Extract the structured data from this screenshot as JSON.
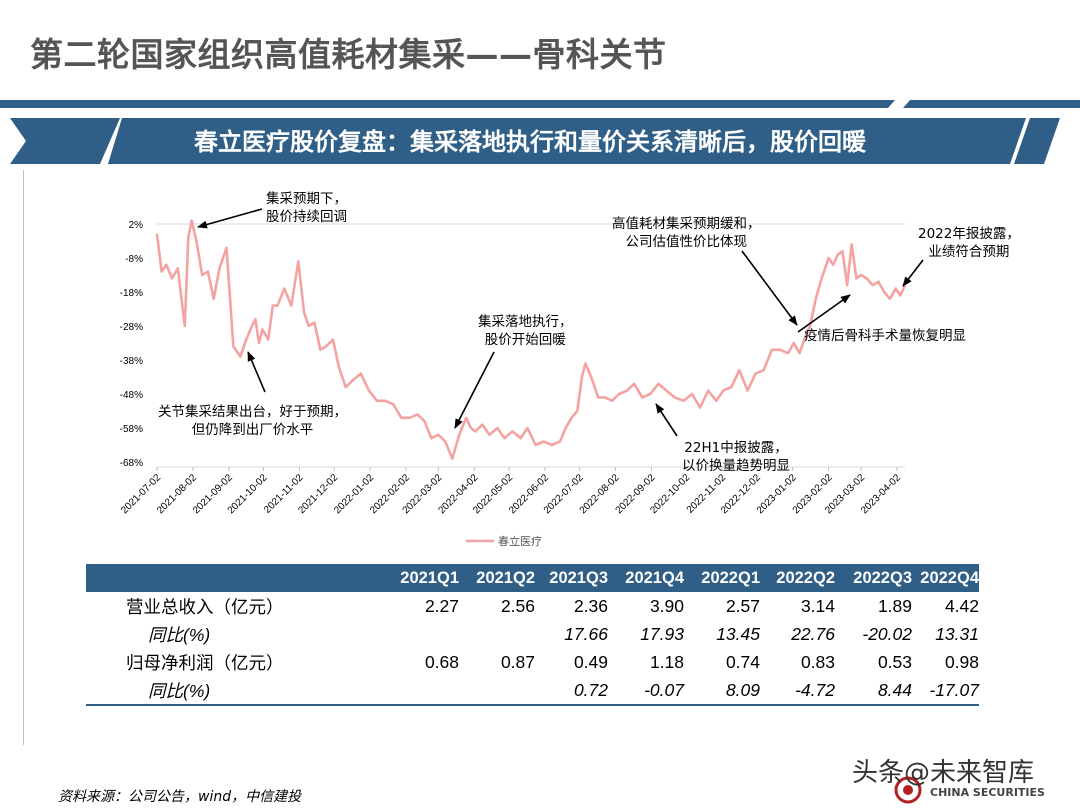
{
  "header": {
    "title": "第二轮国家组织高值耗材集采——骨科关节",
    "subtitle": "春立医疗股价复盘：集采落地执行和量价关系清晰后，股价回暖"
  },
  "colors": {
    "line": "#f4a3a3",
    "accent": "#2f5e86",
    "title": "#555555"
  },
  "chart_data": {
    "type": "line",
    "title": "",
    "xlabel": "",
    "ylabel": "",
    "ylim": [
      -68,
      2
    ],
    "y_ticks": [
      "2%",
      "-8%",
      "-18%",
      "-28%",
      "-38%",
      "-48%",
      "-58%",
      "-68%"
    ],
    "x_ticks": [
      "2021-07-02",
      "2021-08-02",
      "2021-09-02",
      "2021-10-02",
      "2021-11-02",
      "2021-12-02",
      "2022-01-02",
      "2022-02-02",
      "2022-03-02",
      "2022-04-02",
      "2022-05-02",
      "2022-06-02",
      "2022-07-02",
      "2022-08-02",
      "2022-09-02",
      "2022-10-02",
      "2022-11-02",
      "2022-12-02",
      "2023-01-02",
      "2023-02-02",
      "2023-03-02",
      "2023-04-02"
    ],
    "legend": "bottom-center",
    "series": [
      {
        "name": "春立医疗",
        "x": [
          "2021-07-02",
          "2021-07-06",
          "2021-07-10",
          "2021-07-15",
          "2021-07-20",
          "2021-07-26",
          "2021-07-29",
          "2021-08-01",
          "2021-08-05",
          "2021-08-10",
          "2021-08-15",
          "2021-08-20",
          "2021-08-25",
          "2021-08-31",
          "2021-09-06",
          "2021-09-12",
          "2021-09-17",
          "2021-09-22",
          "2021-09-25",
          "2021-09-28",
          "2021-10-01",
          "2021-10-06",
          "2021-10-10",
          "2021-10-14",
          "2021-10-20",
          "2021-10-26",
          "2021-11-01",
          "2021-11-06",
          "2021-11-10",
          "2021-11-15",
          "2021-11-20",
          "2021-11-25",
          "2021-12-01",
          "2021-12-06",
          "2021-12-12",
          "2021-12-18",
          "2021-12-25",
          "2022-01-01",
          "2022-01-08",
          "2022-01-15",
          "2022-01-22",
          "2022-01-29",
          "2022-02-05",
          "2022-02-12",
          "2022-02-18",
          "2022-02-24",
          "2022-03-02",
          "2022-03-08",
          "2022-03-14",
          "2022-03-20",
          "2022-03-26",
          "2022-03-30",
          "2022-04-03",
          "2022-04-09",
          "2022-04-15",
          "2022-04-22",
          "2022-04-28",
          "2022-05-05",
          "2022-05-12",
          "2022-05-18",
          "2022-05-25",
          "2022-06-01",
          "2022-06-08",
          "2022-06-15",
          "2022-06-20",
          "2022-06-25",
          "2022-06-30",
          "2022-07-04",
          "2022-07-07",
          "2022-07-12",
          "2022-07-18",
          "2022-07-24",
          "2022-07-30",
          "2022-08-05",
          "2022-08-12",
          "2022-08-18",
          "2022-08-25",
          "2022-09-01",
          "2022-09-08",
          "2022-09-15",
          "2022-09-22",
          "2022-09-30",
          "2022-10-07",
          "2022-10-14",
          "2022-10-21",
          "2022-10-28",
          "2022-11-03",
          "2022-11-10",
          "2022-11-17",
          "2022-11-24",
          "2022-12-01",
          "2022-12-08",
          "2022-12-15",
          "2022-12-22",
          "2022-12-29",
          "2023-01-03",
          "2023-01-08",
          "2023-01-12",
          "2023-01-17",
          "2023-01-22",
          "2023-01-27",
          "2023-02-02",
          "2023-02-06",
          "2023-02-10",
          "2023-02-14",
          "2023-02-18",
          "2023-02-22",
          "2023-02-26",
          "2023-03-02",
          "2023-03-07",
          "2023-03-12",
          "2023-03-17",
          "2023-03-22",
          "2023-03-27",
          "2023-04-01",
          "2023-04-05",
          "2023-04-09"
        ],
        "values": [
          -1,
          -12,
          -10,
          -14,
          -11,
          -28,
          -2,
          3,
          -3,
          -13,
          -12,
          -20,
          -11,
          -5,
          -34,
          -37,
          -32,
          -28,
          -26,
          -33,
          -29,
          -32,
          -22,
          -22,
          -17,
          -22,
          -9,
          -24,
          -28,
          -27,
          -35,
          -34,
          -32,
          -40,
          -46,
          -44,
          -42,
          -47,
          -50,
          -50,
          -51,
          -55,
          -55,
          -54,
          -56,
          -61,
          -60,
          -62,
          -67,
          -60,
          -55,
          -58,
          -59,
          -57,
          -60,
          -58,
          -61,
          -59,
          -61,
          -58,
          -63,
          -62,
          -63,
          -62,
          -58,
          -55,
          -53,
          -43,
          -39,
          -43,
          -49,
          -49,
          -50,
          -48,
          -47,
          -45,
          -49,
          -48,
          -45,
          -47,
          -49,
          -50,
          -48,
          -52,
          -47,
          -50,
          -47,
          -46,
          -41,
          -47,
          -42,
          -41,
          -35,
          -35,
          -36,
          -33,
          -36,
          -32,
          -28,
          -20,
          -14,
          -8,
          -10,
          -7,
          -6,
          -16,
          -4,
          -14,
          -13,
          -14,
          -16,
          -15,
          -18,
          -20,
          -17,
          -19,
          -16
        ]
      }
    ]
  },
  "annotations": {
    "a1": "集采预期下，\n股价持续回调",
    "a2": "关节集采结果出台，好于预期，\n但仍降到出厂价水平",
    "a3": "集采落地执行，\n股价开始回暖",
    "a4": "高值耗材集采预期缓和，\n公司估值性价比体现",
    "a5": "22H1中报披露，\n以价换量趋势明显",
    "a6": "2022年报披露，\n业绩符合预期",
    "a7": "疫情后骨科手术量恢复明显"
  },
  "table": {
    "headers": [
      "",
      "2021Q1",
      "2021Q2",
      "2021Q3",
      "2021Q4",
      "2022Q1",
      "2022Q2",
      "2022Q3",
      "2022Q4"
    ],
    "rows": [
      {
        "label": "营业总收入（亿元）",
        "values": [
          "2.27",
          "2.56",
          "2.36",
          "3.90",
          "2.57",
          "3.14",
          "1.89",
          "4.42"
        ]
      },
      {
        "label": "同比(%)",
        "values": [
          "",
          "",
          "17.66",
          "17.93",
          "13.45",
          "22.76",
          "-20.02",
          "13.31"
        ]
      },
      {
        "label": "归母净利润（亿元）",
        "values": [
          "0.68",
          "0.87",
          "0.49",
          "1.18",
          "0.74",
          "0.83",
          "0.53",
          "0.98"
        ]
      },
      {
        "label": "同比(%)",
        "values": [
          "",
          "",
          "0.72",
          "-0.07",
          "8.09",
          "-4.72",
          "8.44",
          "-17.07"
        ]
      }
    ]
  },
  "footer": {
    "source": "资料来源：公司公告，wind，中信建投",
    "watermark": "头条@未来智库",
    "logo": "CHINA SECURITIES"
  }
}
